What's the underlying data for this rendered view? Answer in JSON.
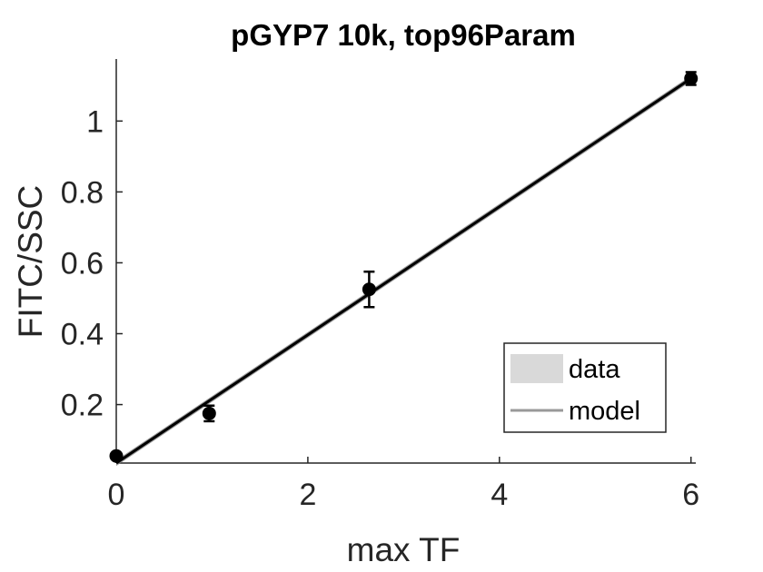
{
  "chart_data": {
    "type": "scatter",
    "title": "pGYP7 10k, top96Param",
    "xlabel": "max TF",
    "ylabel": "FITC/SSC",
    "xlim": [
      0,
      6.05
    ],
    "ylim": [
      0.035,
      1.175
    ],
    "xticks": [
      0,
      2,
      4,
      6
    ],
    "yticks": [
      0.2,
      0.4,
      0.6,
      0.8,
      1
    ],
    "xtick_labels": [
      "0",
      "2",
      "4",
      "6"
    ],
    "ytick_labels": [
      "0.2",
      "0.4",
      "0.6",
      "0.8",
      "1"
    ],
    "grid": false,
    "legend_position": "bottom-right",
    "series": [
      {
        "name": "data",
        "kind": "points-with-errorbars",
        "x": [
          0,
          0.97,
          2.64,
          6.0
        ],
        "y": [
          0.055,
          0.175,
          0.525,
          1.12
        ],
        "err": [
          0.0,
          0.022,
          0.05,
          0.018
        ],
        "color": "#000000"
      },
      {
        "name": "model",
        "kind": "line-with-band",
        "x": [
          0,
          6.0
        ],
        "y": [
          0.035,
          1.12
        ],
        "band_halfwidth": 0.008,
        "color": "#000000",
        "band_color": "#808080"
      }
    ],
    "legend": [
      {
        "label": "data",
        "swatch": "patch",
        "color": "#d9d9d9"
      },
      {
        "label": "model",
        "swatch": "line",
        "color": "#999999"
      }
    ]
  }
}
